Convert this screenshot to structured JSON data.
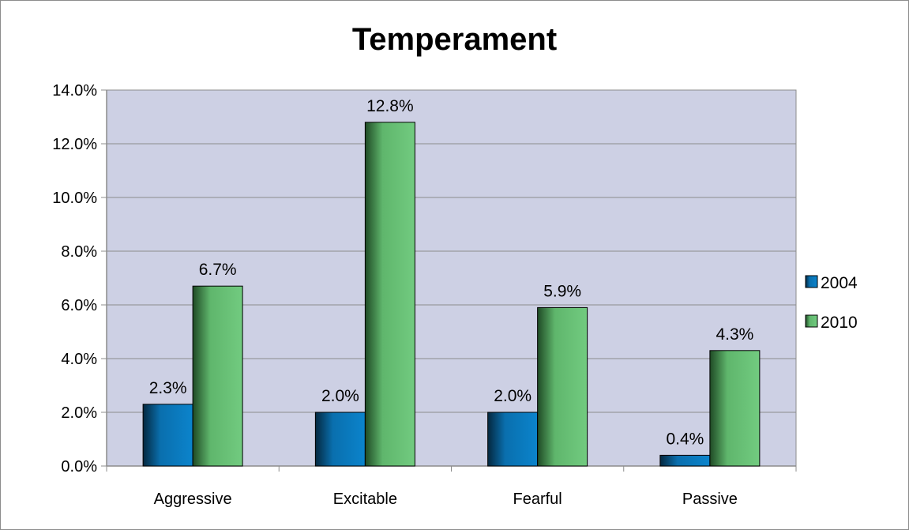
{
  "chart_data": {
    "type": "bar",
    "title": "Temperament",
    "xlabel": "",
    "ylabel": "",
    "categories": [
      "Aggressive",
      "Excitable",
      "Fearful",
      "Passive"
    ],
    "series": [
      {
        "name": "2004",
        "values": [
          2.3,
          2.0,
          2.0,
          0.4
        ],
        "labels": [
          "2.3%",
          "2.0%",
          "2.0%",
          "0.4%"
        ],
        "color": "#0b7fc4"
      },
      {
        "name": "2010",
        "values": [
          6.7,
          12.8,
          5.9,
          4.3
        ],
        "labels": [
          "6.7%",
          "12.8%",
          "5.9%",
          "4.3%"
        ],
        "color": "#6fc77d"
      }
    ],
    "ylim": [
      0,
      14
    ],
    "yticks": [
      0,
      2,
      4,
      6,
      8,
      10,
      12,
      14
    ],
    "ytick_labels": [
      "0.0%",
      "2.0%",
      "4.0%",
      "6.0%",
      "8.0%",
      "10.0%",
      "12.0%",
      "14.0%"
    ],
    "grid": true,
    "legend": "right",
    "plot_background": "#cdd0e4"
  }
}
